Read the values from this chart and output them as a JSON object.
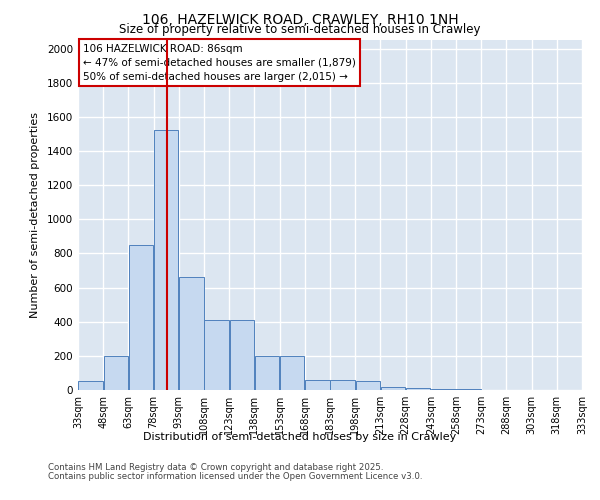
{
  "title_line1": "106, HAZELWICK ROAD, CRAWLEY, RH10 1NH",
  "title_line2": "Size of property relative to semi-detached houses in Crawley",
  "xlabel": "Distribution of semi-detached houses by size in Crawley",
  "ylabel": "Number of semi-detached properties",
  "footer_line1": "Contains HM Land Registry data © Crown copyright and database right 2025.",
  "footer_line2": "Contains public sector information licensed under the Open Government Licence v3.0.",
  "annotation_title": "106 HAZELWICK ROAD: 86sqm",
  "annotation_line1": "← 47% of semi-detached houses are smaller (1,879)",
  "annotation_line2": "50% of semi-detached houses are larger (2,015) →",
  "property_size": 86,
  "bin_edges": [
    33,
    48,
    63,
    78,
    93,
    108,
    123,
    138,
    153,
    168,
    183,
    198,
    213,
    228,
    243,
    258,
    273,
    288,
    303,
    318,
    333
  ],
  "bar_heights": [
    50,
    200,
    850,
    1520,
    660,
    410,
    410,
    200,
    200,
    60,
    60,
    55,
    20,
    10,
    5,
    5,
    2,
    2,
    1,
    1
  ],
  "bar_color": "#c6d9f0",
  "bar_edge_color": "#4f81bd",
  "vline_color": "#cc0000",
  "vline_x": 86,
  "ylim": [
    0,
    2050
  ],
  "yticks": [
    0,
    200,
    400,
    600,
    800,
    1000,
    1200,
    1400,
    1600,
    1800,
    2000
  ],
  "background_color": "#dce6f1",
  "grid_color": "#ffffff",
  "annotation_box_color": "#ffffff",
  "annotation_box_edge_color": "#cc0000"
}
